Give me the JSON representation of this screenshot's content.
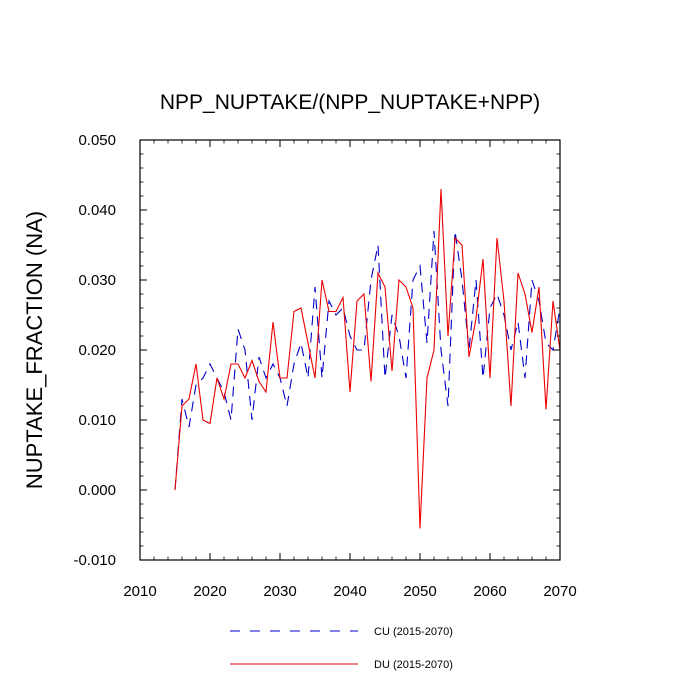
{
  "chart_data": {
    "type": "line",
    "title": "NPP_NUPTAKE/(NPP_NUPTAKE+NPP)",
    "xlabel": "",
    "ylabel": "NUPTAKE_FRACTION  (NA)",
    "xlim": [
      2010,
      2070
    ],
    "ylim": [
      -0.01,
      0.05
    ],
    "xticks": [
      2010,
      2020,
      2030,
      2040,
      2050,
      2060,
      2070
    ],
    "xtick_labels": [
      "2010",
      "2020",
      "2030",
      "2040",
      "2050",
      "2060",
      "2070"
    ],
    "yticks": [
      -0.01,
      0.0,
      0.01,
      0.02,
      0.03,
      0.04,
      0.05
    ],
    "ytick_labels": [
      "-0.010",
      "0.000",
      "0.010",
      "0.020",
      "0.030",
      "0.040",
      "0.050"
    ],
    "legend_position": "bottom",
    "x": [
      2015,
      2016,
      2017,
      2018,
      2019,
      2020,
      2021,
      2022,
      2023,
      2024,
      2025,
      2026,
      2027,
      2028,
      2029,
      2030,
      2031,
      2032,
      2033,
      2034,
      2035,
      2036,
      2037,
      2038,
      2039,
      2040,
      2041,
      2042,
      2043,
      2044,
      2045,
      2046,
      2047,
      2048,
      2049,
      2050,
      2051,
      2052,
      2053,
      2054,
      2055,
      2056,
      2057,
      2058,
      2059,
      2060,
      2061,
      2062,
      2063,
      2064,
      2065,
      2066,
      2067,
      2068,
      2069,
      2070
    ],
    "series": [
      {
        "name": "CU (2015-2070)",
        "color": "#0000cc",
        "dash": "dashed",
        "values": [
          0.0,
          0.013,
          0.009,
          0.015,
          0.016,
          0.018,
          0.016,
          0.014,
          0.01,
          0.023,
          0.02,
          0.01,
          0.019,
          0.016,
          0.018,
          0.016,
          0.012,
          0.018,
          0.021,
          0.016,
          0.029,
          0.016,
          0.027,
          0.025,
          0.026,
          0.022,
          0.02,
          0.02,
          0.03,
          0.035,
          0.016,
          0.025,
          0.022,
          0.016,
          0.03,
          0.032,
          0.021,
          0.037,
          0.02,
          0.012,
          0.037,
          0.03,
          0.02,
          0.03,
          0.016,
          0.026,
          0.028,
          0.025,
          0.02,
          0.024,
          0.016,
          0.03,
          0.027,
          0.021,
          0.02,
          0.026
        ]
      },
      {
        "name": "DU (2015-2070)",
        "color": "#ee0000",
        "dash": "solid",
        "values": [
          0.0,
          0.012,
          0.013,
          0.018,
          0.01,
          0.0095,
          0.016,
          0.013,
          0.018,
          0.018,
          0.016,
          0.0185,
          0.0155,
          0.014,
          0.024,
          0.016,
          0.016,
          0.0255,
          0.026,
          0.021,
          0.016,
          0.03,
          0.0255,
          0.0255,
          0.0275,
          0.014,
          0.027,
          0.028,
          0.0155,
          0.031,
          0.029,
          0.017,
          0.03,
          0.029,
          0.026,
          -0.0055,
          0.016,
          0.02,
          0.043,
          0.022,
          0.036,
          0.035,
          0.019,
          0.0245,
          0.033,
          0.016,
          0.036,
          0.027,
          0.012,
          0.031,
          0.028,
          0.0225,
          0.029,
          0.0115,
          0.027,
          0.02
        ]
      }
    ]
  }
}
